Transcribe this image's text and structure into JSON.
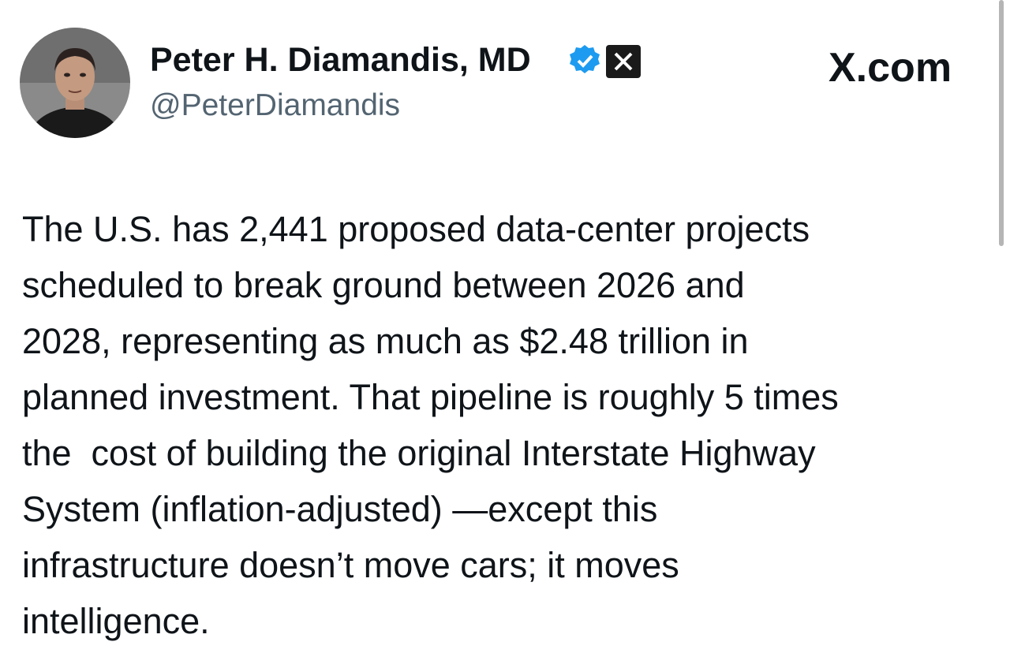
{
  "author": {
    "name": "Peter H. Diamandis, MD",
    "handle": "@PeterDiamandis"
  },
  "site": "X.com",
  "body": {
    "lines": [
      "The U.S. has 2,441 proposed data-center projects",
      "scheduled to break ground between 2026 and",
      "2028, representing as much as $2.48 trillion in",
      "planned investment. That pipeline is roughly 5 times",
      "the  cost of building the original Interstate Highway",
      "System (inflation-adjusted) —except this",
      "infrastructure doesn’t move cars; it moves",
      "intelligence."
    ]
  }
}
